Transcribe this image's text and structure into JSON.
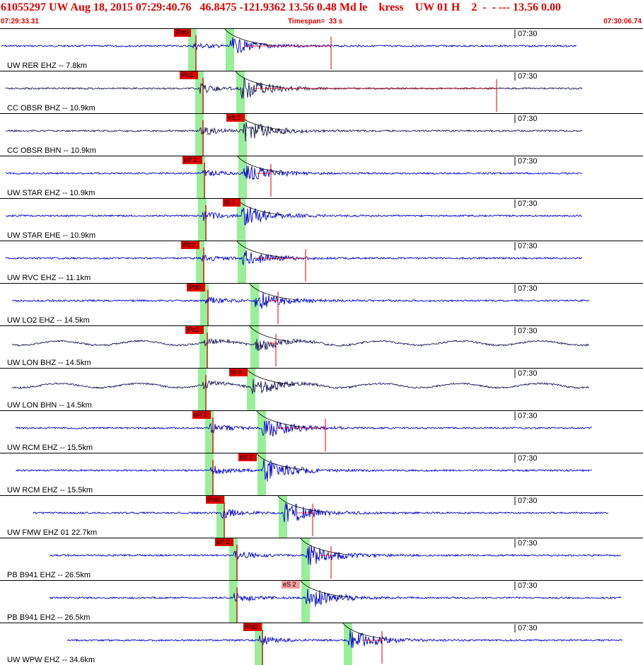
{
  "header": {
    "title": "61055297 UW Aug 18, 2015 07:29:40.76   46.8475 -121.9362 13.56 0.48 Md le    kress    UW 01 H    2  -  - --- 13.56 0.00",
    "start_time": "07:29:33.31",
    "timespan": "Timespan=  33 s",
    "end_time": "07:30:06.74"
  },
  "colors": {
    "title": "#e00000",
    "trace_blue": "#0000cc",
    "trace_dark": "#1a1a55",
    "pick_box": "#e00000",
    "phase_window": "#99ee99",
    "separator": "#000000"
  },
  "traces": [
    {
      "label": "UW RER EHZ -- 7.8km",
      "time_mark": "07:30",
      "pick": "iPd0",
      "amp": 0.5,
      "color": "blue"
    },
    {
      "label": "CC OBSR BHZ -- 10.9km",
      "time_mark": "07:30",
      "pick": "iPc1",
      "amp": 0.7,
      "color": "dark"
    },
    {
      "label": "CC OBSR BHN -- 10.9km",
      "time_mark": "07:30",
      "pick": "eS 2",
      "amp": 0.7,
      "color": "dark"
    },
    {
      "label": "UW STAR EHZ -- 10.9km",
      "time_mark": "07:30",
      "pick": "eP 2",
      "amp": 0.6,
      "color": "blue"
    },
    {
      "label": "UW STAR EHE -- 10.9km",
      "time_mark": "07:30",
      "pick": "iS 1",
      "amp": 0.7,
      "color": "blue"
    },
    {
      "label": "UW RVC EHZ -- 11.1km",
      "time_mark": "07:30",
      "pick": "iPc0",
      "amp": 0.5,
      "color": "blue"
    },
    {
      "label": "UW LO2 EHZ -- 14.5km",
      "time_mark": "07:30",
      "pick": "iPd0",
      "amp": 0.6,
      "color": "blue"
    },
    {
      "label": "UW LON BHZ -- 14.5km",
      "time_mark": "07:30",
      "pick": "iPc1",
      "amp": 0.4,
      "color": "dark"
    },
    {
      "label": "UW LON BHN -- 14.5km",
      "time_mark": "07:30",
      "pick": "iS 0",
      "amp": 0.5,
      "color": "dark"
    },
    {
      "label": "UW RCM EHZ -- 15.5km",
      "time_mark": "07:30",
      "pick": "eP 2",
      "amp": 0.7,
      "color": "blue"
    },
    {
      "label": "UW RCM EHZ -- 15.5km",
      "time_mark": "07:30",
      "pick": "eS 2",
      "amp": 0.8,
      "color": "blue"
    },
    {
      "label": "UW FMW EHZ 01 22.7km",
      "time_mark": "07:30",
      "pick": "iPd0",
      "amp": 0.8,
      "color": "blue"
    },
    {
      "label": "PB B941 EHZ -- 26.5km",
      "time_mark": "07:30",
      "pick": "eP 2",
      "amp": 0.7,
      "color": "blue"
    },
    {
      "label": "PB B941 EH2 -- 26.5km",
      "time_mark": "07:30",
      "pick": "eS 2",
      "amp": 0.7,
      "color": "blue"
    },
    {
      "label": "UW WPW EHZ -- 34.6km",
      "time_mark": "07:30",
      "pick": "iPd0",
      "amp": 0.7,
      "color": "blue"
    }
  ]
}
